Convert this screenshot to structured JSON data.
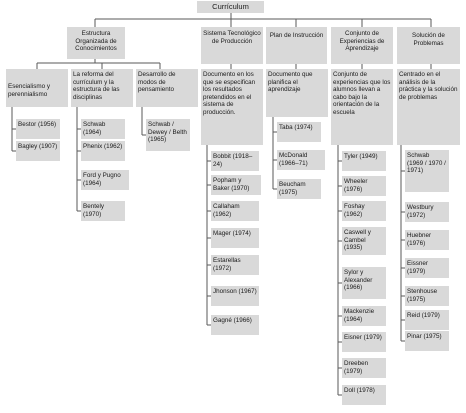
{
  "root": "Currículum",
  "columns": [
    {
      "title": "Estructura Organizada de Conocimientos"
    },
    {
      "title": "Sistema Tecnológico de Producción",
      "desc": "Documento en los que se especifican los resultados pretendidos en el sistema de producción.",
      "authors": [
        "Bobbit (1918–24)",
        "Popham y Baker (1970)",
        "Callaham (1962)",
        "Mager (1974)",
        "Estarellas (1972)",
        "Jhonson (1967)",
        "Gagné (1966)"
      ]
    },
    {
      "title": "Plan de Instrucción",
      "desc": "Documento que planifica el aprendizaje",
      "authors": [
        "Taba (1974)",
        "McDonald (1966–71)",
        "Beucham (1975)"
      ]
    },
    {
      "title": "Conjunto de Experiencias de Aprendizaje",
      "desc": "Conjunto de experiencias que los alumnos llevan a cabo bajo la orientación de la escuela",
      "authors": [
        "Tyler (1949)",
        "Wheeler (1976)",
        "Foshay (1962)",
        "Caswell y Cambel (1935)",
        "Sylor y Alexander (1966)",
        "Mackenzie (1964)",
        "Eisner (1979)",
        "Dreeben (1979)",
        "Doll (1978)"
      ]
    },
    {
      "title": "Solución de Problemas",
      "desc": "Centrado en el análisis de la práctica y la solución de problemas",
      "authors": [
        "Schwab (1969 / 1970 / 1971)",
        "Westbury (1972)",
        "Huebner (1976)",
        "Eissner (1979)",
        "Stenhouse (1975)",
        "Reid (1979)",
        "Pinar (1975)"
      ]
    }
  ],
  "subcolumns": [
    {
      "title": "Esencialismo y perennialismo",
      "authors": [
        "Bestor (1956)",
        "Bagley (1907)"
      ]
    },
    {
      "title": "La reforma del currículum y la estructura de las disciplinas",
      "authors": [
        "Schwab (1964)",
        "Phenix (1962)",
        "Ford y Pugno (1964)",
        "Bentely (1970)"
      ]
    },
    {
      "title": "Desarrollo de modos de pensamiento",
      "authors": [
        "Schwab / Dewey / Belth (1965)"
      ]
    }
  ]
}
